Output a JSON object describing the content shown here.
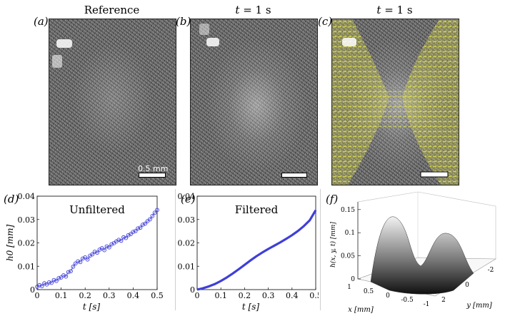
{
  "panels": {
    "a": {
      "label": "(a)",
      "title": "Reference",
      "scale_label": "0.5 mm"
    },
    "b": {
      "label": "(b)",
      "title_var": "t",
      "title_rest": " = 1 s"
    },
    "c": {
      "label": "(c)",
      "title_var": "t",
      "title_rest": " = 1 s"
    },
    "d": {
      "label": "(d)",
      "title": "Unfiltered"
    },
    "e": {
      "label": "(e)",
      "title": "Filtered"
    },
    "f": {
      "label": "(f)"
    }
  },
  "colors": {
    "data_line": "#3f3fd8",
    "markers": "#3f3fd8",
    "arrows": "#d8d84a"
  },
  "chart_data": [
    {
      "id": "d",
      "type": "scatter",
      "title": "Unfiltered",
      "xlabel": "t [s]",
      "ylabel": "h0 [mm]",
      "xlim": [
        0,
        0.5
      ],
      "ylim": [
        0,
        0.04
      ],
      "xticks": [
        "0",
        "0.1",
        "0.2",
        "0.3",
        "0.4",
        "0.5"
      ],
      "yticks": [
        "0",
        "0.01",
        "0.02",
        "0.03",
        "0.04"
      ],
      "x": [
        0.0,
        0.01,
        0.02,
        0.03,
        0.04,
        0.05,
        0.06,
        0.07,
        0.08,
        0.09,
        0.1,
        0.11,
        0.12,
        0.13,
        0.14,
        0.15,
        0.16,
        0.17,
        0.18,
        0.19,
        0.2,
        0.21,
        0.22,
        0.23,
        0.24,
        0.25,
        0.26,
        0.27,
        0.28,
        0.29,
        0.3,
        0.31,
        0.32,
        0.33,
        0.34,
        0.35,
        0.36,
        0.37,
        0.38,
        0.39,
        0.4,
        0.41,
        0.42,
        0.43,
        0.44,
        0.45,
        0.46,
        0.47,
        0.48,
        0.49,
        0.5
      ],
      "values": [
        0.0012,
        0.0019,
        0.0015,
        0.0027,
        0.0022,
        0.0031,
        0.0029,
        0.0041,
        0.0037,
        0.0049,
        0.0052,
        0.0061,
        0.0056,
        0.0075,
        0.0079,
        0.0098,
        0.0112,
        0.0121,
        0.0118,
        0.0133,
        0.0138,
        0.0129,
        0.0145,
        0.0151,
        0.0162,
        0.0158,
        0.0171,
        0.0177,
        0.0169,
        0.0185,
        0.0181,
        0.0194,
        0.0199,
        0.0206,
        0.0213,
        0.0209,
        0.0224,
        0.0221,
        0.0233,
        0.0238,
        0.0247,
        0.0251,
        0.0262,
        0.0265,
        0.0278,
        0.0282,
        0.0293,
        0.0301,
        0.0315,
        0.0329,
        0.0341
      ]
    },
    {
      "id": "e",
      "type": "line",
      "title": "Filtered",
      "xlabel": "t [s]",
      "ylabel": "h0 [mm]",
      "xlim": [
        0,
        0.5
      ],
      "ylim": [
        0,
        0.04
      ],
      "xticks": [
        "0",
        "0.1",
        "0.2",
        "0.3",
        "0.4",
        "0.5"
      ],
      "yticks": [
        "0",
        "0.01",
        "0.02",
        "0.03",
        "0.04"
      ],
      "x": [
        0.0,
        0.025,
        0.05,
        0.075,
        0.1,
        0.125,
        0.15,
        0.175,
        0.2,
        0.225,
        0.25,
        0.275,
        0.3,
        0.325,
        0.35,
        0.375,
        0.4,
        0.425,
        0.45,
        0.475,
        0.5
      ],
      "values": [
        0.0,
        0.0006,
        0.0014,
        0.0024,
        0.0037,
        0.0052,
        0.0069,
        0.0087,
        0.0106,
        0.0125,
        0.0143,
        0.0159,
        0.0174,
        0.0188,
        0.0202,
        0.0217,
        0.0233,
        0.0251,
        0.0272,
        0.0297,
        0.034
      ]
    },
    {
      "id": "f",
      "type": "surface",
      "zlabel": "h(x, y, t) [mm]",
      "xlabel": "x [mm]",
      "ylabel": "y [mm]",
      "zticks": [
        "0",
        "0.05",
        "0.1",
        "0.15"
      ],
      "xticks": [
        "1",
        "0.5",
        "0",
        "-0.5",
        "-1"
      ],
      "yticks": [
        "2",
        "0",
        "-2"
      ],
      "zlim": [
        0,
        0.15
      ]
    }
  ]
}
